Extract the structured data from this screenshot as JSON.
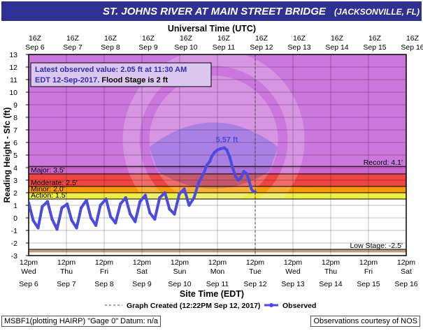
{
  "header": {
    "title": "ST. JOHNS RIVER AT MAIN STREET BRIDGE",
    "location": "(JACKSONVILLE, FL)"
  },
  "footer": {
    "station_info": "MSBF1(plotting HAIRP) \"Gage 0\" Datum: n/a",
    "credit": "Observations courtesy of NOS"
  },
  "chart_data": {
    "type": "line",
    "title": "ST. JOHNS RIVER AT MAIN STREET BRIDGE",
    "top_axis_label": "Universal Time (UTC)",
    "xlabel": "Site Time (EDT)",
    "ylabel": "Reading Height - Sfc (ft)",
    "ylim": [
      -3,
      13
    ],
    "xlim": [
      "2017-09-06 12:00",
      "2017-09-16 12:00"
    ],
    "y_ticks": [
      -3,
      -2,
      -1,
      0,
      1,
      2,
      3,
      4,
      5,
      6,
      7,
      8,
      9,
      10,
      11,
      12,
      13
    ],
    "top_ticks": [
      {
        "l1": "16Z",
        "l2": "Sep 6"
      },
      {
        "l1": "16Z",
        "l2": "Sep 7"
      },
      {
        "l1": "16Z",
        "l2": "Sep 8"
      },
      {
        "l1": "16Z",
        "l2": "Sep 9"
      },
      {
        "l1": "16Z",
        "l2": "Sep 10"
      },
      {
        "l1": "16Z",
        "l2": "Sep 11"
      },
      {
        "l1": "16Z",
        "l2": "Sep 12"
      },
      {
        "l1": "16Z",
        "l2": "Sep 13"
      },
      {
        "l1": "16Z",
        "l2": "Sep 14"
      },
      {
        "l1": "16Z",
        "l2": "Sep 15"
      },
      {
        "l1": "16Z",
        "l2": "Sep 16"
      }
    ],
    "bottom_ticks": [
      {
        "l1": "12pm",
        "l2": "Wed",
        "l3": "Sep 6"
      },
      {
        "l1": "12pm",
        "l2": "Thu",
        "l3": "Sep 7"
      },
      {
        "l1": "12pm",
        "l2": "Fri",
        "l3": "Sep 8"
      },
      {
        "l1": "12pm",
        "l2": "Sat",
        "l3": "Sep 9"
      },
      {
        "l1": "12pm",
        "l2": "Sun",
        "l3": "Sep 10"
      },
      {
        "l1": "12pm",
        "l2": "Mon",
        "l3": "Sep 11"
      },
      {
        "l1": "12pm",
        "l2": "Tue",
        "l3": "Sep 12"
      },
      {
        "l1": "12pm",
        "l2": "Wed",
        "l3": "Sep 13"
      },
      {
        "l1": "12pm",
        "l2": "Thu",
        "l3": "Sep 14"
      },
      {
        "l1": "12pm",
        "l2": "Fri",
        "l3": "Sep 15"
      },
      {
        "l1": "12pm",
        "l2": "Sat",
        "l3": "Sep 16"
      }
    ],
    "bands": [
      {
        "name": "Record",
        "from": 4.1,
        "to": 13,
        "color": "#cc77dd"
      },
      {
        "name": "Major",
        "from": 3.5,
        "to": 4.1,
        "color": "#cc66cc"
      },
      {
        "name": "Moderate",
        "from": 2.5,
        "to": 3.5,
        "color": "#ee4444"
      },
      {
        "name": "Minor",
        "from": 2.0,
        "to": 2.5,
        "color": "#ff9900"
      },
      {
        "name": "Action",
        "from": 1.5,
        "to": 2.0,
        "color": "#eeee44"
      },
      {
        "name": "Low",
        "from": -2.75,
        "to": -2.5,
        "color": "#b8a07a"
      }
    ],
    "stage_labels": [
      {
        "text": "Major: 3.5'",
        "y": 3.5,
        "side": "left"
      },
      {
        "text": "Moderate: 2.5'",
        "y": 2.5,
        "side": "left"
      },
      {
        "text": "Minor: 2.0'",
        "y": 2.0,
        "side": "left"
      },
      {
        "text": "Action: 1.5'",
        "y": 1.5,
        "side": "left"
      },
      {
        "text": "Record: 4.1'",
        "y": 4.1,
        "side": "right"
      },
      {
        "text": "Low Stage: -2.5'",
        "y": -2.5,
        "side": "right"
      }
    ],
    "info_box": {
      "line1": "Latest observed value: 2.05 ft at 11:30 AM",
      "line2a": "EDT 12-Sep-2017.",
      "line2b": "Flood Stage is 2 ft"
    },
    "peak_label": {
      "text": "5.57 ft",
      "x": 5.25,
      "y": 5.57
    },
    "created_x": 6.0,
    "legend": {
      "created": "Graph Created (12:22PM Sep 12, 2017)",
      "observed": "Observed"
    },
    "colors": {
      "line": "#4b4bdd",
      "created": "#444444"
    },
    "x_units_note": "days after 12pm Wed Sep 6",
    "series": [
      {
        "name": "Observed",
        "x": [
          0.0,
          0.12,
          0.25,
          0.36,
          0.5,
          0.62,
          0.75,
          0.88,
          1.02,
          1.14,
          1.27,
          1.39,
          1.53,
          1.65,
          1.78,
          1.9,
          2.05,
          2.17,
          2.3,
          2.43,
          2.57,
          2.69,
          2.82,
          2.95,
          3.09,
          3.21,
          3.34,
          3.47,
          3.61,
          3.73,
          3.86,
          3.99,
          4.12,
          4.25,
          4.38,
          4.5,
          4.63,
          4.72,
          4.8,
          4.85,
          4.92,
          5.0,
          5.08,
          5.18,
          5.25,
          5.33,
          5.4,
          5.48,
          5.55,
          5.62,
          5.7,
          5.78,
          5.85,
          5.9,
          5.95,
          6.0
        ],
        "y": [
          1.2,
          -0.2,
          -0.8,
          0.9,
          1.3,
          -0.1,
          -0.9,
          0.8,
          1.1,
          -0.2,
          -0.8,
          0.8,
          1.4,
          0.0,
          -0.6,
          1.0,
          1.5,
          0.1,
          -0.4,
          1.1,
          1.6,
          0.3,
          -0.3,
          1.3,
          1.8,
          0.4,
          -0.1,
          1.6,
          2.0,
          0.7,
          0.3,
          1.9,
          2.3,
          1.0,
          1.6,
          2.8,
          3.5,
          4.2,
          4.5,
          4.9,
          5.2,
          5.4,
          5.5,
          5.57,
          5.4,
          4.8,
          4.0,
          3.3,
          3.0,
          3.2,
          3.7,
          3.5,
          2.8,
          2.3,
          2.1,
          2.05
        ]
      }
    ]
  }
}
